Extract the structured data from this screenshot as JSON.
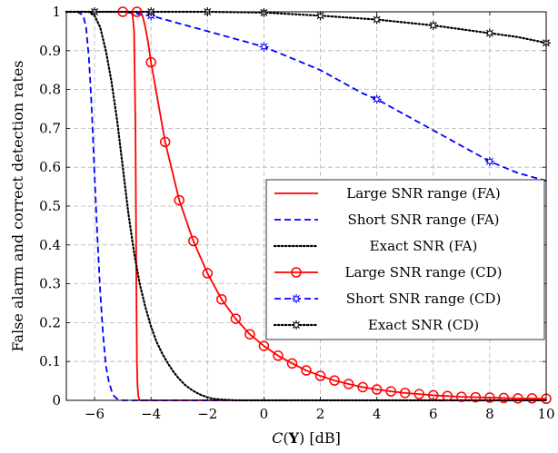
{
  "chart_data": {
    "type": "line",
    "xlabel": "C(Y) [dB]",
    "xlabel_parts": {
      "func": "C",
      "open": "(",
      "var": "Y",
      "close": ")",
      "unit": " [dB]"
    },
    "ylabel": "False alarm and correct detection rates",
    "xlim": [
      -7,
      10
    ],
    "ylim": [
      0,
      1
    ],
    "xticks": [
      -6,
      -4,
      -2,
      0,
      2,
      4,
      6,
      8,
      10
    ],
    "xtick_labels": [
      "−6",
      "−4",
      "−2",
      "0",
      "2",
      "4",
      "6",
      "8",
      "10"
    ],
    "yticks": [
      0,
      0.1,
      0.2,
      0.3,
      0.4,
      0.5,
      0.6,
      0.7,
      0.8,
      0.9,
      1
    ],
    "ytick_labels": [
      "0",
      "0.1",
      "0.2",
      "0.3",
      "0.4",
      "0.5",
      "0.6",
      "0.7",
      "0.8",
      "0.9",
      "1"
    ],
    "grid": true,
    "legend_position": "right",
    "series": [
      {
        "name": "Large SNR range (FA)",
        "color": "#ff0000",
        "dash": "solid",
        "marker": "none",
        "x": [
          -7,
          -5.0,
          -4.8,
          -4.7,
          -4.65,
          -4.6,
          -4.55,
          -4.52,
          -4.5,
          -4.48,
          -4.45,
          -4.4,
          -4.3,
          -4.0,
          10
        ],
        "y": [
          1,
          1,
          1,
          0.999,
          0.99,
          0.95,
          0.7,
          0.3,
          0.1,
          0.04,
          0.01,
          0,
          0,
          0,
          0
        ]
      },
      {
        "name": "Short SNR range (FA)",
        "color": "#0000ff",
        "dash": "dashed",
        "marker": "none",
        "x": [
          -7,
          -6.6,
          -6.4,
          -6.3,
          -6.2,
          -6.1,
          -6.0,
          -5.9,
          -5.8,
          -5.7,
          -5.6,
          -5.5,
          -5.4,
          -5.3,
          -5.2,
          -5.0,
          10
        ],
        "y": [
          1,
          1,
          0.99,
          0.96,
          0.88,
          0.75,
          0.58,
          0.42,
          0.28,
          0.17,
          0.09,
          0.05,
          0.025,
          0.01,
          0.004,
          0,
          0
        ]
      },
      {
        "name": "Exact SNR (FA)",
        "color": "#000000",
        "dash": "dotted",
        "marker": "none",
        "x": [
          -7,
          -6.2,
          -6.0,
          -5.8,
          -5.6,
          -5.4,
          -5.2,
          -5.0,
          -4.8,
          -4.6,
          -4.4,
          -4.2,
          -4.0,
          -3.8,
          -3.6,
          -3.4,
          -3.2,
          -3.0,
          -2.8,
          -2.6,
          -2.4,
          -2.2,
          -2.0,
          -1.8,
          -1.5,
          -1.0,
          0,
          10
        ],
        "y": [
          1,
          1,
          0.99,
          0.96,
          0.9,
          0.82,
          0.72,
          0.6,
          0.48,
          0.38,
          0.3,
          0.24,
          0.19,
          0.15,
          0.12,
          0.095,
          0.073,
          0.055,
          0.04,
          0.029,
          0.02,
          0.013,
          0.008,
          0.004,
          0.002,
          0,
          0,
          0
        ]
      },
      {
        "name": "Large SNR range (CD)",
        "color": "#ff0000",
        "dash": "solid",
        "marker": "circle",
        "x": [
          -7,
          -5,
          -4.5,
          -4.3,
          -4.2,
          -4.1,
          -4.0,
          -3.5,
          -3.0,
          -2.5,
          -2.0,
          -1.5,
          -1.0,
          -0.5,
          0,
          0.5,
          1.0,
          1.5,
          2.0,
          2.5,
          3.0,
          3.5,
          4.0,
          4.5,
          5.0,
          5.5,
          6.0,
          6.5,
          7.0,
          7.5,
          8.0,
          8.5,
          9.0,
          9.5,
          10.0
        ],
        "y": [
          1,
          1,
          1,
          0.99,
          0.96,
          0.92,
          0.87,
          0.665,
          0.515,
          0.41,
          0.327,
          0.26,
          0.21,
          0.17,
          0.14,
          0.115,
          0.095,
          0.077,
          0.063,
          0.051,
          0.042,
          0.034,
          0.028,
          0.023,
          0.019,
          0.016,
          0.013,
          0.011,
          0.009,
          0.008,
          0.007,
          0.006,
          0.005,
          0.005,
          0.004
        ],
        "marker_x": [
          -5,
          -4.5,
          -4.0,
          -3.5,
          -3.0,
          -2.5,
          -2.0,
          -1.5,
          -1.0,
          -0.5,
          0,
          0.5,
          1.0,
          1.5,
          2.0,
          2.5,
          3.0,
          3.5,
          4.0,
          4.5,
          5.0,
          5.5,
          6.0,
          6.5,
          7.0,
          7.5,
          8.0,
          8.5,
          9.0,
          9.5,
          10.0
        ]
      },
      {
        "name": "Short SNR range (CD)",
        "color": "#0000ff",
        "dash": "dashed",
        "marker": "star",
        "x": [
          -7,
          -6,
          -5,
          -4.5,
          -4,
          -3.5,
          -3,
          -2.5,
          -2,
          -1.5,
          -1,
          -0.5,
          0,
          0.5,
          1,
          1.5,
          2,
          2.5,
          3,
          3.5,
          4,
          4.5,
          5,
          5.5,
          6,
          6.5,
          7,
          7.5,
          8,
          8.5,
          9,
          9.5,
          10
        ],
        "y": [
          1,
          1,
          1,
          0.995,
          0.99,
          0.98,
          0.97,
          0.96,
          0.95,
          0.94,
          0.93,
          0.92,
          0.91,
          0.895,
          0.88,
          0.865,
          0.85,
          0.83,
          0.81,
          0.79,
          0.775,
          0.755,
          0.735,
          0.715,
          0.695,
          0.675,
          0.655,
          0.635,
          0.615,
          0.6,
          0.585,
          0.575,
          0.565
        ],
        "marker_x": [
          -4,
          0,
          4,
          8
        ]
      },
      {
        "name": "Exact SNR (CD)",
        "color": "#000000",
        "dash": "dotted",
        "marker": "star",
        "x": [
          -7,
          -6,
          -4,
          -2,
          0,
          2,
          4,
          6,
          7,
          8,
          9,
          10
        ],
        "y": [
          1,
          1,
          1,
          1,
          0.998,
          0.99,
          0.98,
          0.965,
          0.955,
          0.945,
          0.935,
          0.92
        ],
        "marker_x": [
          -6,
          -4,
          -2,
          0,
          2,
          4,
          6,
          8,
          10
        ]
      }
    ]
  }
}
